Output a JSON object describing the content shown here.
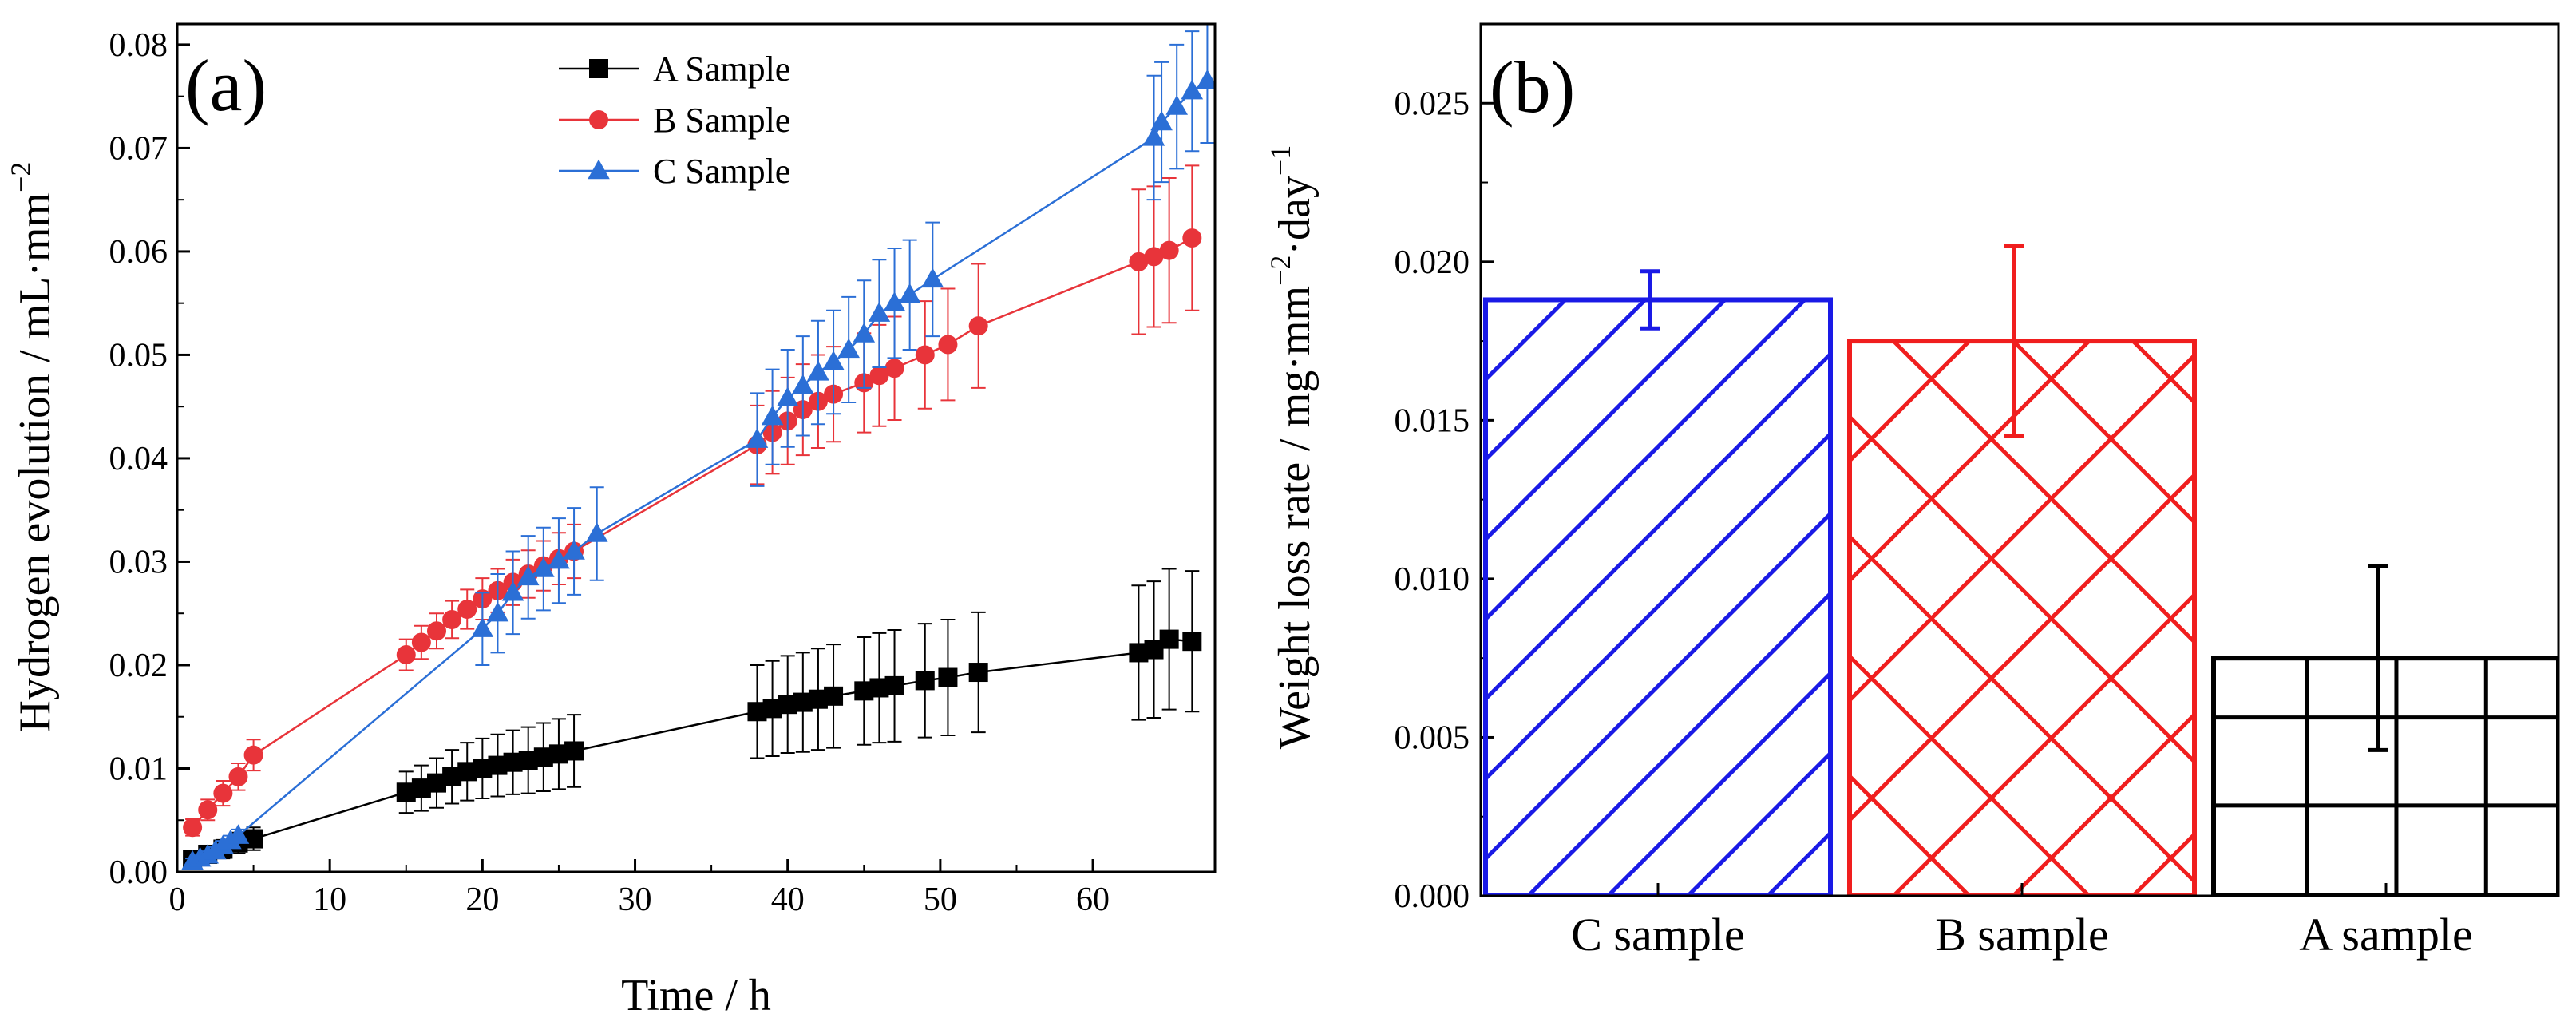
{
  "chart_data": [
    {
      "type": "line",
      "panel_label": "(a)",
      "xlabel": "Time / h",
      "ylabel": "Hydrogen evolution / mL·mm",
      "ylabel_sup": "−2",
      "xlim": [
        0,
        68
      ],
      "ylim": [
        0,
        0.082
      ],
      "xticks": [
        0,
        10,
        20,
        30,
        40,
        50,
        60
      ],
      "xtick_labels": [
        "0",
        "10",
        "20",
        "30",
        "40",
        "50",
        "60"
      ],
      "yticks": [
        0,
        0.01,
        0.02,
        0.03,
        0.04,
        0.05,
        0.06,
        0.07,
        0.08
      ],
      "ytick_labels": [
        "0.00",
        "0.01",
        "0.02",
        "0.03",
        "0.04",
        "0.05",
        "0.06",
        "0.07",
        "0.08"
      ],
      "legend_position": "top-center",
      "series": [
        {
          "name": "A Sample",
          "color": "#000000",
          "marker": "square",
          "x": [
            1,
            2,
            3,
            4,
            5,
            15,
            16,
            17,
            18,
            19,
            20,
            21,
            22,
            23,
            24,
            25,
            26,
            38,
            39,
            40,
            41,
            42,
            43,
            45,
            46,
            47,
            49,
            50.5,
            52.5,
            63,
            64,
            65,
            66.5
          ],
          "y": [
            0.0012,
            0.0017,
            0.0022,
            0.0028,
            0.0032,
            0.0077,
            0.0081,
            0.0086,
            0.0092,
            0.0097,
            0.01,
            0.0103,
            0.0106,
            0.0108,
            0.0111,
            0.0114,
            0.0117,
            0.0155,
            0.0158,
            0.0162,
            0.0164,
            0.0167,
            0.017,
            0.0175,
            0.0178,
            0.018,
            0.0185,
            0.0188,
            0.0193,
            0.0212,
            0.0215,
            0.0225,
            0.0223
          ],
          "err": [
            0.0006,
            0.0008,
            0.0009,
            0.001,
            0.0011,
            0.002,
            0.0022,
            0.0024,
            0.0026,
            0.0028,
            0.0029,
            0.003,
            0.0031,
            0.0032,
            0.0033,
            0.0034,
            0.0035,
            0.0045,
            0.0046,
            0.0047,
            0.0048,
            0.0049,
            0.005,
            0.0052,
            0.0053,
            0.0054,
            0.0055,
            0.0056,
            0.0058,
            0.0065,
            0.0066,
            0.0068,
            0.0068
          ]
        },
        {
          "name": "B Sample",
          "color": "#e8343a",
          "marker": "circle",
          "x": [
            1,
            2,
            3,
            4,
            5,
            15,
            16,
            17,
            18,
            19,
            20,
            21,
            22,
            23,
            24,
            25,
            26,
            38,
            39,
            40,
            41,
            42,
            43,
            45,
            46,
            47,
            49,
            50.5,
            52.5,
            63,
            64,
            65,
            66.5
          ],
          "y": [
            0.0043,
            0.006,
            0.0076,
            0.0092,
            0.0113,
            0.021,
            0.0222,
            0.0233,
            0.0244,
            0.0254,
            0.0264,
            0.0272,
            0.028,
            0.0288,
            0.0296,
            0.0303,
            0.031,
            0.0413,
            0.0425,
            0.0436,
            0.0447,
            0.0455,
            0.0462,
            0.0473,
            0.048,
            0.0487,
            0.05,
            0.051,
            0.0528,
            0.059,
            0.0595,
            0.0601,
            0.0613
          ],
          "err": [
            0.0008,
            0.001,
            0.0012,
            0.0013,
            0.0015,
            0.0015,
            0.0016,
            0.0017,
            0.0018,
            0.0019,
            0.002,
            0.0021,
            0.0022,
            0.0023,
            0.0024,
            0.0025,
            0.0026,
            0.0038,
            0.004,
            0.0042,
            0.0044,
            0.0045,
            0.0046,
            0.0048,
            0.0049,
            0.005,
            0.0052,
            0.0054,
            0.006,
            0.007,
            0.0068,
            0.007,
            0.007
          ]
        },
        {
          "name": "C Sample",
          "color": "#2b6fd6",
          "marker": "triangle",
          "x": [
            1,
            1.5,
            2,
            2.5,
            3,
            3.5,
            4,
            20,
            21,
            22,
            23,
            24,
            25,
            26,
            27.5,
            38,
            39,
            40,
            41,
            42,
            43,
            44,
            45,
            46,
            47,
            48,
            49.5,
            64,
            64.5,
            65.5,
            66.5,
            67.5
          ],
          "y": [
            0.001,
            0.0013,
            0.0016,
            0.002,
            0.0025,
            0.003,
            0.0035,
            0.0235,
            0.025,
            0.027,
            0.0285,
            0.0293,
            0.0301,
            0.031,
            0.0327,
            0.0418,
            0.044,
            0.0458,
            0.047,
            0.0483,
            0.0493,
            0.0505,
            0.052,
            0.054,
            0.055,
            0.0558,
            0.0573,
            0.071,
            0.0725,
            0.074,
            0.0755,
            0.0765
          ],
          "err": [
            0.0003,
            0.0003,
            0.0004,
            0.0004,
            0.0005,
            0.0005,
            0.0006,
            0.0035,
            0.0038,
            0.004,
            0.004,
            0.004,
            0.0041,
            0.0042,
            0.0045,
            0.0045,
            0.0046,
            0.0047,
            0.0048,
            0.005,
            0.005,
            0.0051,
            0.0052,
            0.0052,
            0.0053,
            0.0053,
            0.0055,
            0.006,
            0.0058,
            0.006,
            0.0058,
            0.006
          ]
        }
      ]
    },
    {
      "type": "bar",
      "panel_label": "(b)",
      "xlabel": "",
      "ylabel": "Weight loss rate / mg·mm",
      "ylabel_sup1": "−2",
      "ylabel_mid": "·day",
      "ylabel_sup2": "−1",
      "ylim": [
        0,
        0.0275
      ],
      "yticks": [
        0,
        0.005,
        0.01,
        0.015,
        0.02,
        0.025
      ],
      "ytick_labels": [
        "0.000",
        "0.005",
        "0.010",
        "0.015",
        "0.020",
        "0.025"
      ],
      "categories": [
        "C sample",
        "B sample",
        "A sample"
      ],
      "values": [
        0.0188,
        0.0175,
        0.0075
      ],
      "err": [
        0.0009,
        0.003,
        0.0029
      ],
      "colors": [
        "#1a1ae6",
        "#f01e1e",
        "#000000"
      ],
      "patterns": [
        "diagonal",
        "crosshatch",
        "grid"
      ]
    }
  ]
}
